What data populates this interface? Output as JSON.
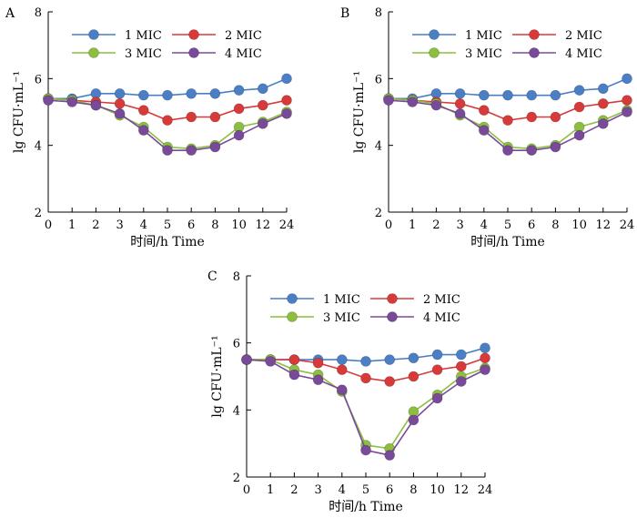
{
  "series_colors": [
    "#4a7fc6",
    "#d83a3a",
    "#8cbf3f",
    "#7a4a9a"
  ],
  "chart_data": [
    {
      "type": "line",
      "panel_label": "A",
      "ylabel": "lg CFU·mL⁻¹",
      "xlabel": "时间/h Time",
      "categories": [
        "0",
        "1",
        "2",
        "3",
        "4",
        "5",
        "6",
        "8",
        "10",
        "12",
        "24"
      ],
      "ylim": [
        2,
        8
      ],
      "yticks": [
        "2",
        "4",
        "6",
        "8"
      ],
      "legend": "top",
      "series": [
        {
          "name": "1 MIC",
          "values": [
            5.4,
            5.4,
            5.55,
            5.55,
            5.5,
            5.5,
            5.55,
            5.55,
            5.65,
            5.7,
            6.0
          ]
        },
        {
          "name": "2 MIC",
          "values": [
            5.4,
            5.35,
            5.3,
            5.25,
            5.05,
            4.75,
            4.85,
            4.85,
            5.1,
            5.2,
            5.35
          ]
        },
        {
          "name": "3 MIC",
          "values": [
            5.4,
            5.35,
            5.2,
            4.9,
            4.55,
            3.95,
            3.9,
            4.0,
            4.55,
            4.7,
            5.0
          ]
        },
        {
          "name": "4 MIC",
          "values": [
            5.35,
            5.3,
            5.2,
            4.95,
            4.45,
            3.85,
            3.85,
            3.95,
            4.3,
            4.65,
            4.95
          ]
        }
      ]
    },
    {
      "type": "line",
      "panel_label": "B",
      "ylabel": "lg CFU·mL⁻¹",
      "xlabel": "时间/h Time",
      "categories": [
        "0",
        "1",
        "2",
        "3",
        "4",
        "5",
        "6",
        "8",
        "10",
        "12",
        "24"
      ],
      "ylim": [
        2,
        8
      ],
      "yticks": [
        "2",
        "4",
        "6",
        "8"
      ],
      "legend": "top",
      "series": [
        {
          "name": "1 MIC",
          "values": [
            5.4,
            5.4,
            5.55,
            5.55,
            5.5,
            5.5,
            5.5,
            5.5,
            5.65,
            5.7,
            6.0
          ]
        },
        {
          "name": "2 MIC",
          "values": [
            5.4,
            5.35,
            5.3,
            5.25,
            5.05,
            4.75,
            4.85,
            4.85,
            5.15,
            5.25,
            5.35
          ]
        },
        {
          "name": "3 MIC",
          "values": [
            5.4,
            5.35,
            5.25,
            4.9,
            4.55,
            3.95,
            3.9,
            4.0,
            4.55,
            4.75,
            5.05
          ]
        },
        {
          "name": "4 MIC",
          "values": [
            5.35,
            5.3,
            5.2,
            4.95,
            4.45,
            3.85,
            3.85,
            3.95,
            4.3,
            4.65,
            5.0
          ]
        }
      ]
    },
    {
      "type": "line",
      "panel_label": "C",
      "ylabel": "lg CFU·mL⁻¹",
      "xlabel": "时间/h Time",
      "categories": [
        "0",
        "1",
        "2",
        "3",
        "4",
        "5",
        "6",
        "8",
        "10",
        "12",
        "24"
      ],
      "ylim": [
        2,
        8
      ],
      "yticks": [
        "2",
        "4",
        "6",
        "8"
      ],
      "legend": "top",
      "series": [
        {
          "name": "1 MIC",
          "values": [
            5.5,
            5.5,
            5.5,
            5.5,
            5.5,
            5.45,
            5.5,
            5.55,
            5.65,
            5.65,
            5.85
          ]
        },
        {
          "name": "2 MIC",
          "values": [
            5.5,
            5.5,
            5.5,
            5.4,
            5.2,
            4.95,
            4.85,
            5.0,
            5.2,
            5.3,
            5.55
          ]
        },
        {
          "name": "3 MIC",
          "values": [
            5.5,
            5.5,
            5.2,
            5.05,
            4.55,
            2.95,
            2.85,
            3.95,
            4.45,
            5.0,
            5.25
          ]
        },
        {
          "name": "4 MIC",
          "values": [
            5.5,
            5.45,
            5.05,
            4.9,
            4.6,
            2.8,
            2.65,
            3.7,
            4.35,
            4.85,
            5.2
          ]
        }
      ]
    }
  ]
}
